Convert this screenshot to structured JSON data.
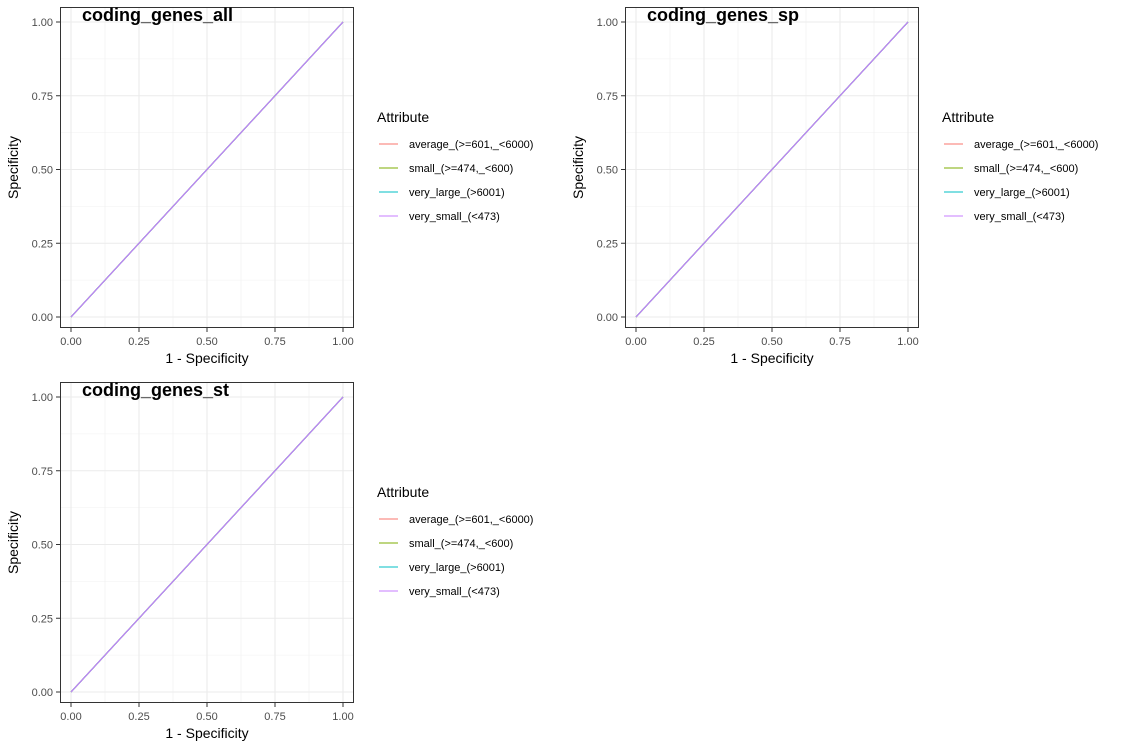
{
  "chart_data": [
    {
      "type": "line",
      "title": "coding_genes_all",
      "xlabel": "1 - Specificity",
      "ylabel": "Specificity",
      "xlim": [
        0,
        1
      ],
      "ylim": [
        0,
        1
      ],
      "xticks": [
        "0.00",
        "0.25",
        "0.50",
        "0.75",
        "1.00"
      ],
      "yticks": [
        "0.00",
        "0.25",
        "0.50",
        "0.75",
        "1.00"
      ],
      "grid": true,
      "legend": {
        "title": "Attribute",
        "placement": "right"
      },
      "series": [
        {
          "name": "average_(>=601,_<6000)",
          "color": "#F8766D",
          "x": [
            0,
            1
          ],
          "y": [
            0,
            1
          ]
        },
        {
          "name": "small_(>=474,_<600)",
          "color": "#7CAE00",
          "x": [
            0,
            1
          ],
          "y": [
            0,
            1
          ]
        },
        {
          "name": "very_large_(>6001)",
          "color": "#00BFC4",
          "x": [
            0,
            1
          ],
          "y": [
            0,
            1
          ]
        },
        {
          "name": "very_small_(<473)",
          "color": "#C77CFF",
          "x": [
            0,
            1
          ],
          "y": [
            0,
            1
          ]
        }
      ]
    },
    {
      "type": "line",
      "title": "coding_genes_sp",
      "xlabel": "1 - Specificity",
      "ylabel": "Specificity",
      "xlim": [
        0,
        1
      ],
      "ylim": [
        0,
        1
      ],
      "xticks": [
        "0.00",
        "0.25",
        "0.50",
        "0.75",
        "1.00"
      ],
      "yticks": [
        "0.00",
        "0.25",
        "0.50",
        "0.75",
        "1.00"
      ],
      "grid": true,
      "legend": {
        "title": "Attribute",
        "placement": "right"
      },
      "series": [
        {
          "name": "average_(>=601,_<6000)",
          "color": "#F8766D",
          "x": [
            0,
            1
          ],
          "y": [
            0,
            1
          ]
        },
        {
          "name": "small_(>=474,_<600)",
          "color": "#7CAE00",
          "x": [
            0,
            1
          ],
          "y": [
            0,
            1
          ]
        },
        {
          "name": "very_large_(>6001)",
          "color": "#00BFC4",
          "x": [
            0,
            1
          ],
          "y": [
            0,
            1
          ]
        },
        {
          "name": "very_small_(<473)",
          "color": "#C77CFF",
          "x": [
            0,
            1
          ],
          "y": [
            0,
            1
          ]
        }
      ]
    },
    {
      "type": "line",
      "title": "coding_genes_st",
      "xlabel": "1 - Specificity",
      "ylabel": "Specificity",
      "xlim": [
        0,
        1
      ],
      "ylim": [
        0,
        1
      ],
      "xticks": [
        "0.00",
        "0.25",
        "0.50",
        "0.75",
        "1.00"
      ],
      "yticks": [
        "0.00",
        "0.25",
        "0.50",
        "0.75",
        "1.00"
      ],
      "grid": true,
      "legend": {
        "title": "Attribute",
        "placement": "right"
      },
      "series": [
        {
          "name": "average_(>=601,_<6000)",
          "color": "#F8766D",
          "x": [
            0,
            1
          ],
          "y": [
            0,
            1
          ]
        },
        {
          "name": "small_(>=474,_<600)",
          "color": "#7CAE00",
          "x": [
            0,
            1
          ],
          "y": [
            0,
            1
          ]
        },
        {
          "name": "very_large_(>6001)",
          "color": "#00BFC4",
          "x": [
            0,
            1
          ],
          "y": [
            0,
            1
          ]
        },
        {
          "name": "very_small_(<473)",
          "color": "#C77CFF",
          "x": [
            0,
            1
          ],
          "y": [
            0,
            1
          ]
        }
      ]
    }
  ]
}
